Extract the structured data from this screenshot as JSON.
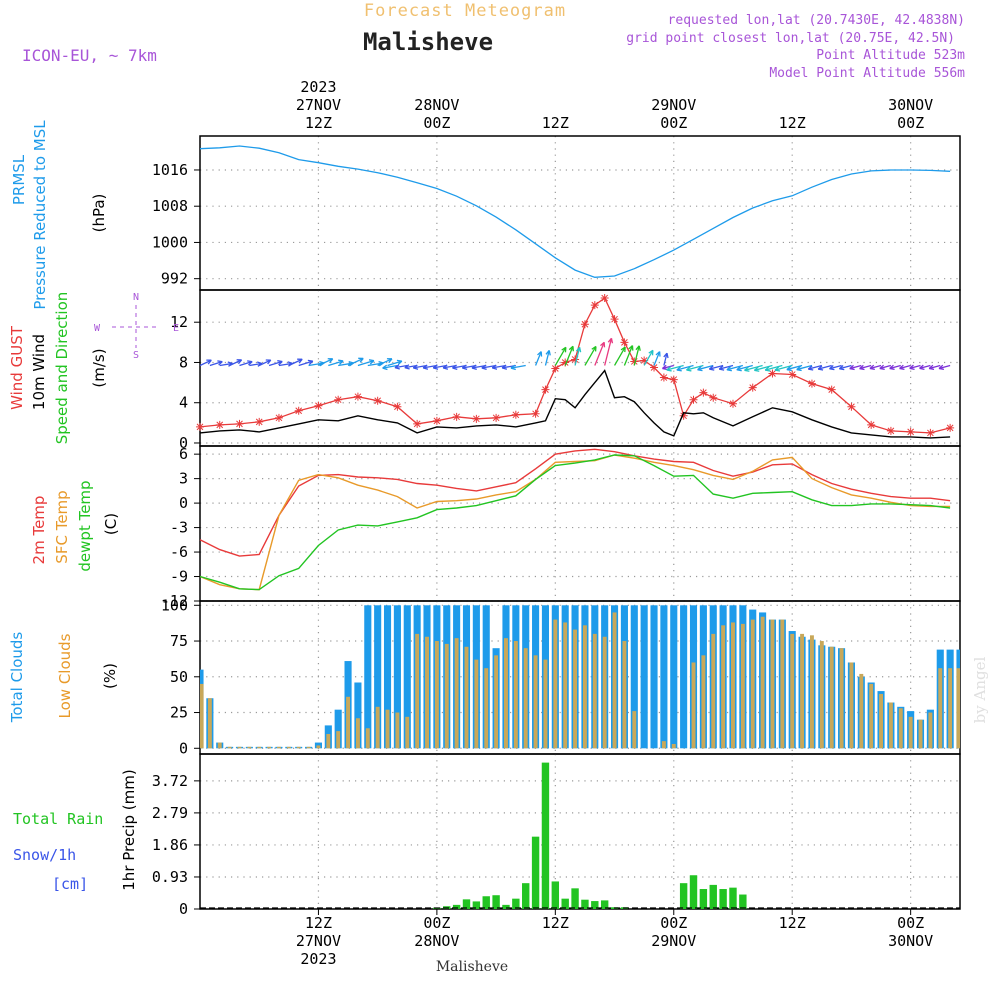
{
  "header": {
    "forecast_label": "Forecast Meteogram",
    "station": "Malisheve",
    "model": "ICON-EU, ~ 7km",
    "requested": "requested lon,lat (20.7430E, 42.4838N)",
    "grid_point": "grid point closest lon,lat (20.75E, 42.5N)",
    "point_alt": "Point Altitude 523m",
    "model_alt": "Model Point Altitude 556m"
  },
  "footer": {
    "station": "Malisheve",
    "credit": "by Angel"
  },
  "colors": {
    "pressure": "#1e9bea",
    "gust": "#e83a3a",
    "wind": "#000000",
    "temp2m": "#e83a3a",
    "sfc": "#e89a2a",
    "dewpt": "#22c422",
    "total_cloud": "#1e9bea",
    "low_cloud": "#c8a85a",
    "rain": "#22c422",
    "purple": "#a855d8",
    "orange": "#f0c070"
  },
  "time_axis": {
    "top_ticks": [
      {
        "t": 12,
        "lines": [
          "2023",
          "27NOV",
          "12Z"
        ]
      },
      {
        "t": 24,
        "lines": [
          "28NOV",
          "00Z"
        ]
      },
      {
        "t": 36,
        "lines": [
          "12Z"
        ]
      },
      {
        "t": 48,
        "lines": [
          "29NOV",
          "00Z"
        ]
      },
      {
        "t": 60,
        "lines": [
          "12Z"
        ]
      },
      {
        "t": 72,
        "lines": [
          "30NOV",
          "00Z"
        ]
      }
    ],
    "bottom_ticks": [
      {
        "t": 12,
        "lines": [
          "12Z",
          "27NOV",
          "2023"
        ]
      },
      {
        "t": 24,
        "lines": [
          "00Z",
          "28NOV"
        ]
      },
      {
        "t": 36,
        "lines": [
          "12Z"
        ]
      },
      {
        "t": 48,
        "lines": [
          "00Z",
          "29NOV"
        ]
      },
      {
        "t": 60,
        "lines": [
          "12Z"
        ]
      },
      {
        "t": 72,
        "lines": [
          "00Z",
          "30NOV"
        ]
      }
    ],
    "range": [
      0,
      77
    ]
  },
  "chart_data": [
    {
      "type": "line",
      "id": "pressure",
      "labels": [
        "PRMSL",
        "Pressure Reduced to MSL",
        "(hPa)"
      ],
      "yticks": [
        992,
        1000,
        1008,
        1016
      ],
      "ylim": [
        989.5,
        1023.5
      ],
      "series": [
        {
          "name": "PRMSL",
          "x": [
            0,
            2,
            4,
            6,
            8,
            10,
            12,
            14,
            16,
            18,
            20,
            22,
            24,
            26,
            28,
            30,
            32,
            34,
            36,
            38,
            40,
            42,
            44,
            46,
            48,
            50,
            52,
            54,
            56,
            58,
            60,
            62,
            64,
            66,
            68,
            70,
            72,
            74,
            76
          ],
          "values": [
            1020.7,
            1020.9,
            1021.3,
            1020.8,
            1019.8,
            1018.3,
            1017.6,
            1016.8,
            1016.2,
            1015.4,
            1014.4,
            1013.2,
            1011.9,
            1010.2,
            1008.1,
            1005.6,
            1002.8,
            999.7,
            996.6,
            993.9,
            992.3,
            992.6,
            994.2,
            996.2,
            998.3,
            1000.7,
            1003.1,
            1005.5,
            1007.6,
            1009.2,
            1010.3,
            1012.2,
            1013.9,
            1015.1,
            1015.8,
            1016.0,
            1016.0,
            1015.9,
            1015.7
          ]
        }
      ]
    },
    {
      "type": "line",
      "id": "wind",
      "labels": [
        "Wind GUST",
        "10m Wind",
        "Speed and Direction",
        "(m/s)"
      ],
      "compass": [
        "N",
        "W",
        "E",
        "S"
      ],
      "yticks": [
        0,
        4,
        8,
        12
      ],
      "ylim": [
        -0.3,
        15.2
      ],
      "series": [
        {
          "name": "Wind GUST",
          "x": [
            0,
            2,
            4,
            6,
            8,
            10,
            12,
            14,
            16,
            18,
            20,
            22,
            24,
            26,
            28,
            30,
            32,
            34,
            35,
            36,
            37,
            38,
            39,
            40,
            41,
            42,
            43,
            44,
            45,
            46,
            47,
            48,
            49,
            50,
            51,
            52,
            54,
            56,
            58,
            60,
            62,
            64,
            66,
            68,
            70,
            72,
            74,
            76
          ],
          "values": [
            1.6,
            1.8,
            1.9,
            2.1,
            2.5,
            3.2,
            3.7,
            4.3,
            4.6,
            4.2,
            3.6,
            1.9,
            2.2,
            2.6,
            2.4,
            2.5,
            2.8,
            2.9,
            5.3,
            7.4,
            8.0,
            8.3,
            11.8,
            13.7,
            14.4,
            12.3,
            10.0,
            8.1,
            8.2,
            7.5,
            6.5,
            6.3,
            2.7,
            4.3,
            5.0,
            4.5,
            3.9,
            5.5,
            6.9,
            6.8,
            5.9,
            5.3,
            3.6,
            1.8,
            1.2,
            1.1,
            1.0,
            1.5
          ]
        },
        {
          "name": "10m Wind",
          "x": [
            0,
            2,
            4,
            6,
            8,
            10,
            12,
            14,
            16,
            18,
            20,
            22,
            24,
            26,
            28,
            30,
            32,
            34,
            35,
            36,
            37,
            38,
            39,
            40,
            41,
            42,
            43,
            44,
            45,
            46,
            47,
            48,
            49,
            50,
            51,
            52,
            54,
            56,
            58,
            60,
            62,
            64,
            66,
            68,
            70,
            72,
            74,
            76
          ],
          "values": [
            1.0,
            1.2,
            1.3,
            1.1,
            1.5,
            1.9,
            2.3,
            2.2,
            2.7,
            2.3,
            2.0,
            1.0,
            1.6,
            1.5,
            1.7,
            1.8,
            1.6,
            2.0,
            2.2,
            4.4,
            4.3,
            3.5,
            4.8,
            6.0,
            7.2,
            4.5,
            4.6,
            4.1,
            3.0,
            2.0,
            1.1,
            0.7,
            3.0,
            2.9,
            3.0,
            2.5,
            1.7,
            2.6,
            3.5,
            3.1,
            2.3,
            1.6,
            1.0,
            0.8,
            0.6,
            0.6,
            0.5,
            0.6
          ]
        }
      ]
    },
    {
      "type": "line",
      "id": "temperature",
      "labels": [
        "2m Temp",
        "SFC Temp",
        "dewpt Temp",
        "(C)"
      ],
      "yticks": [
        -12,
        -9,
        -6,
        -3,
        0,
        3,
        6
      ],
      "ylim": [
        -12,
        7
      ],
      "series": [
        {
          "name": "2m Temp",
          "x": [
            0,
            2,
            4,
            6,
            8,
            10,
            12,
            14,
            16,
            18,
            20,
            22,
            24,
            26,
            28,
            30,
            32,
            34,
            36,
            38,
            40,
            42,
            44,
            46,
            48,
            50,
            52,
            54,
            56,
            58,
            60,
            62,
            64,
            66,
            68,
            70,
            72,
            74,
            76
          ],
          "values": [
            -4.5,
            -5.7,
            -6.5,
            -6.3,
            -1.5,
            2.1,
            3.4,
            3.5,
            3.2,
            3.1,
            2.9,
            2.4,
            2.2,
            1.8,
            1.5,
            2.0,
            2.5,
            4.2,
            6.0,
            6.4,
            6.6,
            6.3,
            5.8,
            5.4,
            5.1,
            5.0,
            4.0,
            3.3,
            3.8,
            4.7,
            4.8,
            3.5,
            2.4,
            1.7,
            1.2,
            0.8,
            0.6,
            0.6,
            0.3
          ]
        },
        {
          "name": "SFC Temp",
          "x": [
            0,
            2,
            4,
            6,
            8,
            10,
            12,
            14,
            16,
            18,
            20,
            22,
            24,
            26,
            28,
            30,
            32,
            34,
            36,
            38,
            40,
            42,
            44,
            46,
            48,
            50,
            52,
            54,
            56,
            58,
            60,
            62,
            64,
            66,
            68,
            70,
            72,
            74,
            76
          ],
          "values": [
            -9.0,
            -10.0,
            -10.5,
            -10.6,
            -1.5,
            2.8,
            3.5,
            3.1,
            2.2,
            1.6,
            0.8,
            -0.6,
            0.2,
            0.3,
            0.5,
            1.0,
            1.4,
            2.9,
            5.0,
            5.1,
            5.2,
            5.9,
            5.5,
            5.0,
            4.6,
            4.1,
            3.4,
            2.9,
            3.9,
            5.3,
            5.6,
            3.0,
            1.9,
            1.0,
            0.6,
            0.1,
            -0.3,
            -0.4,
            -0.4
          ]
        },
        {
          "name": "dewpt Temp",
          "x": [
            0,
            2,
            4,
            6,
            8,
            10,
            12,
            14,
            16,
            18,
            20,
            22,
            24,
            26,
            28,
            30,
            32,
            34,
            36,
            38,
            40,
            42,
            44,
            46,
            48,
            50,
            52,
            54,
            56,
            58,
            60,
            62,
            64,
            66,
            68,
            70,
            72,
            74,
            76
          ],
          "values": [
            -9.0,
            -9.7,
            -10.5,
            -10.6,
            -8.9,
            -8.0,
            -5.2,
            -3.3,
            -2.7,
            -2.8,
            -2.3,
            -1.8,
            -0.8,
            -0.6,
            -0.3,
            0.3,
            0.9,
            2.9,
            4.6,
            4.9,
            5.3,
            5.9,
            5.8,
            4.6,
            3.3,
            3.4,
            1.1,
            0.6,
            1.2,
            1.3,
            1.4,
            0.4,
            -0.3,
            -0.3,
            -0.1,
            -0.1,
            -0.2,
            -0.3,
            -0.6
          ]
        }
      ]
    },
    {
      "type": "bar",
      "id": "clouds",
      "labels": [
        "Total Clouds",
        "Low Clouds",
        "(%)"
      ],
      "yticks": [
        0,
        25,
        50,
        75,
        100
      ],
      "ylim": [
        -4,
        103
      ],
      "x": [
        0,
        1,
        2,
        3,
        4,
        5,
        6,
        7,
        8,
        9,
        10,
        11,
        12,
        13,
        14,
        15,
        16,
        17,
        18,
        19,
        20,
        21,
        22,
        23,
        24,
        25,
        26,
        27,
        28,
        29,
        30,
        31,
        32,
        33,
        34,
        35,
        36,
        37,
        38,
        39,
        40,
        41,
        42,
        43,
        44,
        45,
        46,
        47,
        48,
        49,
        50,
        51,
        52,
        53,
        54,
        55,
        56,
        57,
        58,
        59,
        60,
        61,
        62,
        63,
        64,
        65,
        66,
        67,
        68,
        69,
        70,
        71,
        72,
        73,
        74,
        75,
        76,
        77
      ],
      "series": [
        {
          "name": "Total Clouds",
          "values": [
            55,
            35,
            4,
            1,
            1,
            1,
            1,
            1,
            1,
            1,
            1,
            1,
            4,
            16,
            27,
            61,
            46,
            100,
            100,
            100,
            100,
            100,
            100,
            100,
            100,
            100,
            100,
            100,
            100,
            100,
            70,
            100,
            100,
            100,
            100,
            100,
            100,
            100,
            100,
            100,
            100,
            100,
            100,
            100,
            100,
            100,
            100,
            100,
            100,
            100,
            100,
            100,
            100,
            100,
            100,
            100,
            97,
            95,
            90,
            90,
            82,
            78,
            76,
            72,
            71,
            70,
            60,
            50,
            46,
            40,
            32,
            29,
            26,
            20,
            27,
            69,
            69,
            69
          ]
        },
        {
          "name": "Low Clouds",
          "values": [
            45,
            35,
            4,
            1,
            1,
            1,
            1,
            1,
            1,
            1,
            1,
            1,
            2,
            10,
            12,
            36,
            21,
            14,
            29,
            27,
            25,
            22,
            80,
            78,
            75,
            73,
            77,
            71,
            62,
            56,
            65,
            77,
            75,
            70,
            65,
            62,
            90,
            88,
            83,
            86,
            80,
            78,
            95,
            75,
            26,
            0,
            0,
            5,
            3,
            0,
            60,
            65,
            80,
            86,
            88,
            87,
            90,
            92,
            90,
            90,
            80,
            80,
            79,
            75,
            71,
            70,
            60,
            52,
            45,
            38,
            32,
            28,
            22,
            20,
            25,
            56,
            56,
            56
          ]
        }
      ]
    },
    {
      "type": "bar",
      "id": "precip",
      "labels": [
        "Total Rain",
        "Snow/1h",
        "[cm]",
        "1hr Precip (mm)"
      ],
      "yticks": [
        0,
        0.93,
        1.86,
        2.79,
        3.72
      ],
      "ylim": [
        0,
        4.5
      ],
      "series": [
        {
          "name": "Total Rain",
          "x": [
            24,
            25,
            26,
            27,
            28,
            29,
            30,
            31,
            32,
            33,
            34,
            35,
            36,
            37,
            38,
            39,
            40,
            41,
            42,
            43,
            49,
            50,
            51,
            52,
            53,
            54,
            55
          ],
          "values": [
            0.04,
            0.08,
            0.12,
            0.28,
            0.22,
            0.37,
            0.4,
            0.12,
            0.3,
            0.75,
            2.1,
            4.25,
            0.8,
            0.3,
            0.6,
            0.27,
            0.23,
            0.25,
            0.05,
            0.05,
            0.75,
            0.98,
            0.58,
            0.7,
            0.58,
            0.62,
            0.42
          ]
        }
      ]
    }
  ]
}
